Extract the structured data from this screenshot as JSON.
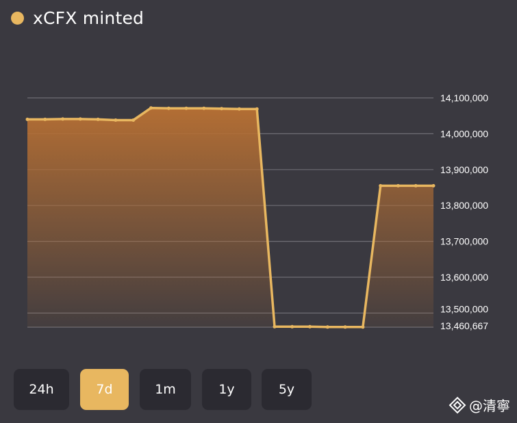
{
  "header": {
    "title": "xCFX minted",
    "dot_color": "#e8b760"
  },
  "range_tabs": [
    {
      "label": "24h",
      "active": false
    },
    {
      "label": "7d",
      "active": true
    },
    {
      "label": "1m",
      "active": false
    },
    {
      "label": "1y",
      "active": false
    },
    {
      "label": "5y",
      "active": false
    }
  ],
  "watermark": {
    "text": "@清寧",
    "icon": "diamond-logo-icon"
  },
  "colors": {
    "line": "#e8b760",
    "fill_top": "#b36e34",
    "grid": "#6e6d74",
    "background": "#3a3940",
    "button": "#2b2a31",
    "button_active": "#e8b760"
  },
  "chart_data": {
    "type": "area",
    "title": "xCFX minted",
    "xlabel": "",
    "ylabel": "",
    "ylim": [
      13460667,
      14100000
    ],
    "y_ticks": [
      14100000,
      14000000,
      13900000,
      13800000,
      13700000,
      13600000,
      13500000,
      13460667
    ],
    "y_tick_labels": [
      "14,100,000",
      "14,000,000",
      "13,900,000",
      "13,800,000",
      "13,700,000",
      "13,600,000",
      "13,500,000",
      "13,460,667"
    ],
    "grid": true,
    "legend": "top-left",
    "series": [
      {
        "name": "xCFX minted",
        "values": [
          14040000,
          14040000,
          14041000,
          14041000,
          14040000,
          14038000,
          14038000,
          14072000,
          14071000,
          14071000,
          14071000,
          14070000,
          14069000,
          14069000,
          13462000,
          13462000,
          13462000,
          13461000,
          13461000,
          13461000,
          13855000,
          13855000,
          13855000,
          13855000
        ]
      }
    ]
  }
}
